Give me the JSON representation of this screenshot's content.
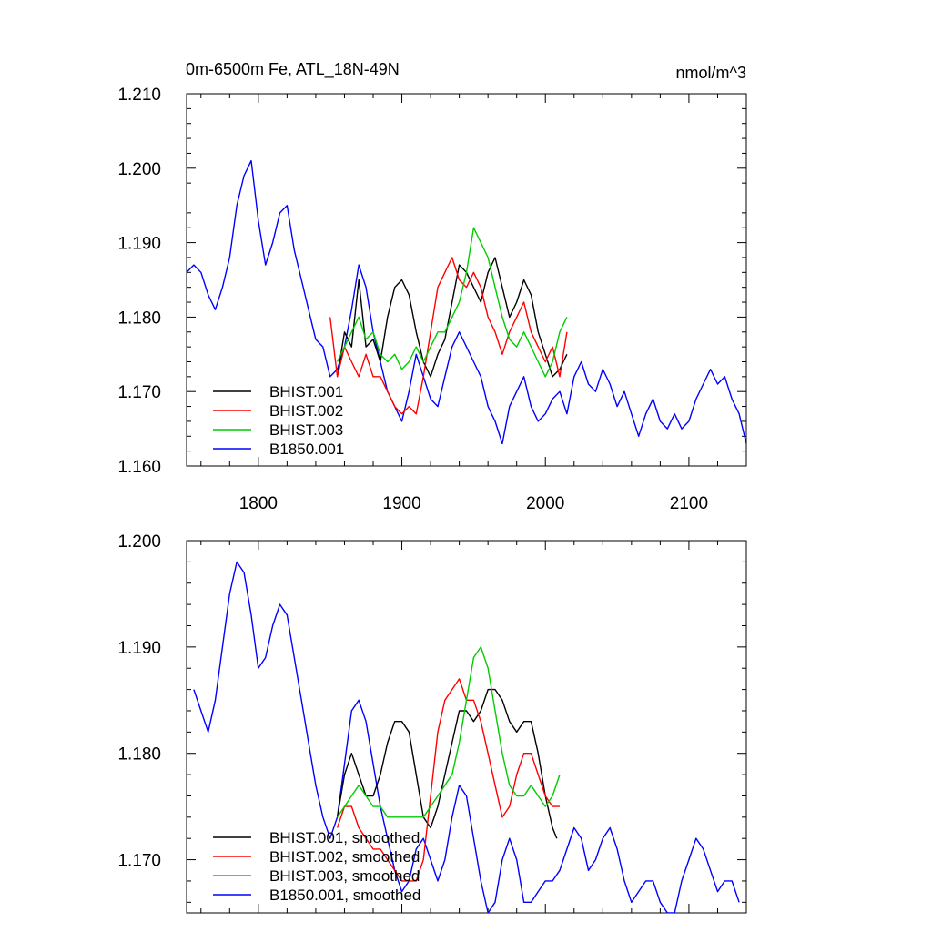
{
  "chart_data": [
    {
      "type": "line",
      "title": "0m-6500m Fe, ATL_18N-49N",
      "units_label": "nmol/m^3",
      "xlim": [
        1750,
        2140
      ],
      "ylim": [
        1.16,
        1.21
      ],
      "x_ticks": [
        1800,
        1900,
        2000,
        2100
      ],
      "y_ticks": [
        1.16,
        1.17,
        1.18,
        1.19,
        1.2,
        1.21
      ],
      "y_tick_labels": [
        "1.160",
        "1.170",
        "1.180",
        "1.190",
        "1.200",
        "1.210"
      ],
      "x_tick_labels": [
        "1800",
        "1900",
        "2000",
        "2100"
      ],
      "legend_position": "bottom-left",
      "grid": false,
      "series": [
        {
          "name": "BHIST.001",
          "color": "#000000",
          "x": [
            1855,
            1860,
            1865,
            1870,
            1875,
            1880,
            1885,
            1890,
            1895,
            1900,
            1905,
            1910,
            1915,
            1920,
            1925,
            1930,
            1935,
            1940,
            1945,
            1950,
            1955,
            1960,
            1965,
            1970,
            1975,
            1980,
            1985,
            1990,
            1995,
            2000,
            2005,
            2010,
            2015
          ],
          "y": [
            1.172,
            1.178,
            1.176,
            1.185,
            1.176,
            1.177,
            1.174,
            1.18,
            1.184,
            1.185,
            1.183,
            1.178,
            1.174,
            1.172,
            1.175,
            1.177,
            1.182,
            1.187,
            1.186,
            1.184,
            1.182,
            1.186,
            1.188,
            1.184,
            1.18,
            1.182,
            1.185,
            1.183,
            1.178,
            1.175,
            1.172,
            1.173,
            1.175
          ]
        },
        {
          "name": "BHIST.002",
          "color": "#ff0000",
          "x": [
            1850,
            1855,
            1860,
            1865,
            1870,
            1875,
            1880,
            1885,
            1890,
            1895,
            1900,
            1905,
            1910,
            1915,
            1920,
            1925,
            1930,
            1935,
            1940,
            1945,
            1950,
            1955,
            1960,
            1965,
            1970,
            1975,
            1980,
            1985,
            1990,
            1995,
            2000,
            2005,
            2010,
            2015
          ],
          "y": [
            1.18,
            1.172,
            1.176,
            1.174,
            1.172,
            1.175,
            1.172,
            1.172,
            1.17,
            1.168,
            1.167,
            1.168,
            1.167,
            1.172,
            1.178,
            1.184,
            1.186,
            1.188,
            1.185,
            1.184,
            1.186,
            1.184,
            1.18,
            1.178,
            1.175,
            1.178,
            1.18,
            1.182,
            1.178,
            1.176,
            1.174,
            1.176,
            1.172,
            1.178
          ]
        },
        {
          "name": "BHIST.003",
          "color": "#00cc00",
          "x": [
            1855,
            1860,
            1865,
            1870,
            1875,
            1880,
            1885,
            1890,
            1895,
            1900,
            1905,
            1910,
            1915,
            1920,
            1925,
            1930,
            1935,
            1940,
            1945,
            1950,
            1955,
            1960,
            1965,
            1970,
            1975,
            1980,
            1985,
            1990,
            1995,
            2000,
            2005,
            2010,
            2015
          ],
          "y": [
            1.174,
            1.176,
            1.178,
            1.18,
            1.177,
            1.178,
            1.175,
            1.174,
            1.175,
            1.173,
            1.174,
            1.176,
            1.174,
            1.176,
            1.178,
            1.178,
            1.18,
            1.182,
            1.186,
            1.192,
            1.19,
            1.188,
            1.184,
            1.18,
            1.177,
            1.176,
            1.178,
            1.176,
            1.174,
            1.172,
            1.174,
            1.178,
            1.18
          ]
        },
        {
          "name": "B1850.001",
          "color": "#0000ff",
          "x": [
            1750,
            1755,
            1760,
            1765,
            1770,
            1775,
            1780,
            1785,
            1790,
            1795,
            1800,
            1805,
            1810,
            1815,
            1820,
            1825,
            1830,
            1835,
            1840,
            1845,
            1850,
            1855,
            1860,
            1865,
            1870,
            1875,
            1880,
            1885,
            1890,
            1895,
            1900,
            1905,
            1910,
            1915,
            1920,
            1925,
            1930,
            1935,
            1940,
            1945,
            1950,
            1955,
            1960,
            1965,
            1970,
            1975,
            1980,
            1985,
            1990,
            1995,
            2000,
            2005,
            2010,
            2015,
            2020,
            2025,
            2030,
            2035,
            2040,
            2045,
            2050,
            2055,
            2060,
            2065,
            2070,
            2075,
            2080,
            2085,
            2090,
            2095,
            2100,
            2105,
            2110,
            2115,
            2120,
            2125,
            2130,
            2135,
            2140
          ],
          "y": [
            1.186,
            1.187,
            1.186,
            1.183,
            1.181,
            1.184,
            1.188,
            1.195,
            1.199,
            1.201,
            1.193,
            1.187,
            1.19,
            1.194,
            1.195,
            1.189,
            1.185,
            1.181,
            1.177,
            1.176,
            1.172,
            1.173,
            1.176,
            1.181,
            1.187,
            1.184,
            1.178,
            1.174,
            1.17,
            1.168,
            1.166,
            1.17,
            1.175,
            1.172,
            1.169,
            1.168,
            1.172,
            1.176,
            1.178,
            1.176,
            1.174,
            1.172,
            1.168,
            1.166,
            1.163,
            1.168,
            1.17,
            1.172,
            1.168,
            1.166,
            1.167,
            1.169,
            1.17,
            1.167,
            1.172,
            1.174,
            1.171,
            1.17,
            1.173,
            1.171,
            1.168,
            1.17,
            1.167,
            1.164,
            1.167,
            1.169,
            1.166,
            1.165,
            1.167,
            1.165,
            1.166,
            1.169,
            1.171,
            1.173,
            1.171,
            1.172,
            1.169,
            1.167,
            1.163
          ]
        }
      ]
    },
    {
      "type": "line",
      "xlim": [
        1750,
        2140
      ],
      "ylim": [
        1.165,
        1.2
      ],
      "x_ticks": [
        1800,
        1900,
        2000,
        2100
      ],
      "y_ticks": [
        1.17,
        1.18,
        1.19,
        1.2
      ],
      "y_tick_labels": [
        "1.170",
        "1.180",
        "1.190",
        "1.200"
      ],
      "legend_position": "bottom-left",
      "grid": false,
      "series": [
        {
          "name": "BHIST.001, smoothed",
          "color": "#000000",
          "x": [
            1855,
            1860,
            1865,
            1870,
            1875,
            1880,
            1885,
            1890,
            1895,
            1900,
            1905,
            1910,
            1915,
            1920,
            1925,
            1930,
            1935,
            1940,
            1945,
            1950,
            1955,
            1960,
            1965,
            1970,
            1975,
            1980,
            1985,
            1990,
            1995,
            2000,
            2005,
            2008
          ],
          "y": [
            1.174,
            1.178,
            1.18,
            1.178,
            1.176,
            1.176,
            1.178,
            1.181,
            1.183,
            1.183,
            1.182,
            1.178,
            1.174,
            1.173,
            1.175,
            1.178,
            1.181,
            1.184,
            1.184,
            1.183,
            1.184,
            1.186,
            1.186,
            1.185,
            1.183,
            1.182,
            1.183,
            1.183,
            1.18,
            1.176,
            1.173,
            1.172
          ]
        },
        {
          "name": "BHIST.002, smoothed",
          "color": "#ff0000",
          "x": [
            1855,
            1860,
            1865,
            1870,
            1875,
            1880,
            1885,
            1890,
            1895,
            1900,
            1905,
            1910,
            1915,
            1920,
            1925,
            1930,
            1935,
            1940,
            1945,
            1950,
            1955,
            1960,
            1965,
            1970,
            1975,
            1980,
            1985,
            1990,
            1995,
            2000,
            2005,
            2010
          ],
          "y": [
            1.173,
            1.175,
            1.175,
            1.173,
            1.172,
            1.171,
            1.171,
            1.17,
            1.169,
            1.168,
            1.168,
            1.168,
            1.17,
            1.176,
            1.182,
            1.185,
            1.186,
            1.187,
            1.185,
            1.185,
            1.183,
            1.18,
            1.177,
            1.174,
            1.175,
            1.178,
            1.18,
            1.18,
            1.178,
            1.176,
            1.175,
            1.175
          ]
        },
        {
          "name": "BHIST.003, smoothed",
          "color": "#00cc00",
          "x": [
            1855,
            1860,
            1865,
            1870,
            1875,
            1880,
            1885,
            1890,
            1895,
            1900,
            1905,
            1910,
            1915,
            1920,
            1925,
            1930,
            1935,
            1940,
            1945,
            1950,
            1955,
            1960,
            1965,
            1970,
            1975,
            1980,
            1985,
            1990,
            1995,
            2000,
            2005,
            2010
          ],
          "y": [
            1.174,
            1.175,
            1.176,
            1.177,
            1.176,
            1.175,
            1.175,
            1.174,
            1.174,
            1.174,
            1.174,
            1.174,
            1.174,
            1.175,
            1.176,
            1.177,
            1.178,
            1.181,
            1.185,
            1.189,
            1.19,
            1.188,
            1.184,
            1.18,
            1.177,
            1.176,
            1.176,
            1.177,
            1.176,
            1.175,
            1.176,
            1.178
          ]
        },
        {
          "name": "B1850.001, smoothed",
          "color": "#0000ff",
          "x": [
            1755,
            1760,
            1765,
            1770,
            1775,
            1780,
            1785,
            1790,
            1795,
            1800,
            1805,
            1810,
            1815,
            1820,
            1825,
            1830,
            1835,
            1840,
            1845,
            1850,
            1855,
            1860,
            1865,
            1870,
            1875,
            1880,
            1885,
            1890,
            1895,
            1900,
            1905,
            1910,
            1915,
            1920,
            1925,
            1930,
            1935,
            1940,
            1945,
            1950,
            1955,
            1960,
            1965,
            1970,
            1975,
            1980,
            1985,
            1990,
            1995,
            2000,
            2005,
            2010,
            2015,
            2020,
            2025,
            2030,
            2035,
            2040,
            2045,
            2050,
            2055,
            2060,
            2065,
            2070,
            2075,
            2080,
            2085,
            2090,
            2095,
            2100,
            2105,
            2110,
            2115,
            2120,
            2125,
            2130,
            2135
          ],
          "y": [
            1.186,
            1.184,
            1.182,
            1.185,
            1.19,
            1.195,
            1.198,
            1.197,
            1.193,
            1.188,
            1.189,
            1.192,
            1.194,
            1.193,
            1.189,
            1.185,
            1.181,
            1.177,
            1.174,
            1.172,
            1.174,
            1.179,
            1.184,
            1.185,
            1.183,
            1.179,
            1.175,
            1.172,
            1.169,
            1.167,
            1.168,
            1.171,
            1.172,
            1.17,
            1.168,
            1.17,
            1.174,
            1.177,
            1.176,
            1.172,
            1.168,
            1.165,
            1.166,
            1.17,
            1.172,
            1.17,
            1.166,
            1.166,
            1.167,
            1.168,
            1.168,
            1.169,
            1.171,
            1.173,
            1.172,
            1.169,
            1.17,
            1.172,
            1.173,
            1.171,
            1.168,
            1.166,
            1.167,
            1.168,
            1.168,
            1.166,
            1.165,
            1.165,
            1.168,
            1.17,
            1.172,
            1.171,
            1.169,
            1.167,
            1.168,
            1.168,
            1.166
          ]
        }
      ]
    }
  ]
}
